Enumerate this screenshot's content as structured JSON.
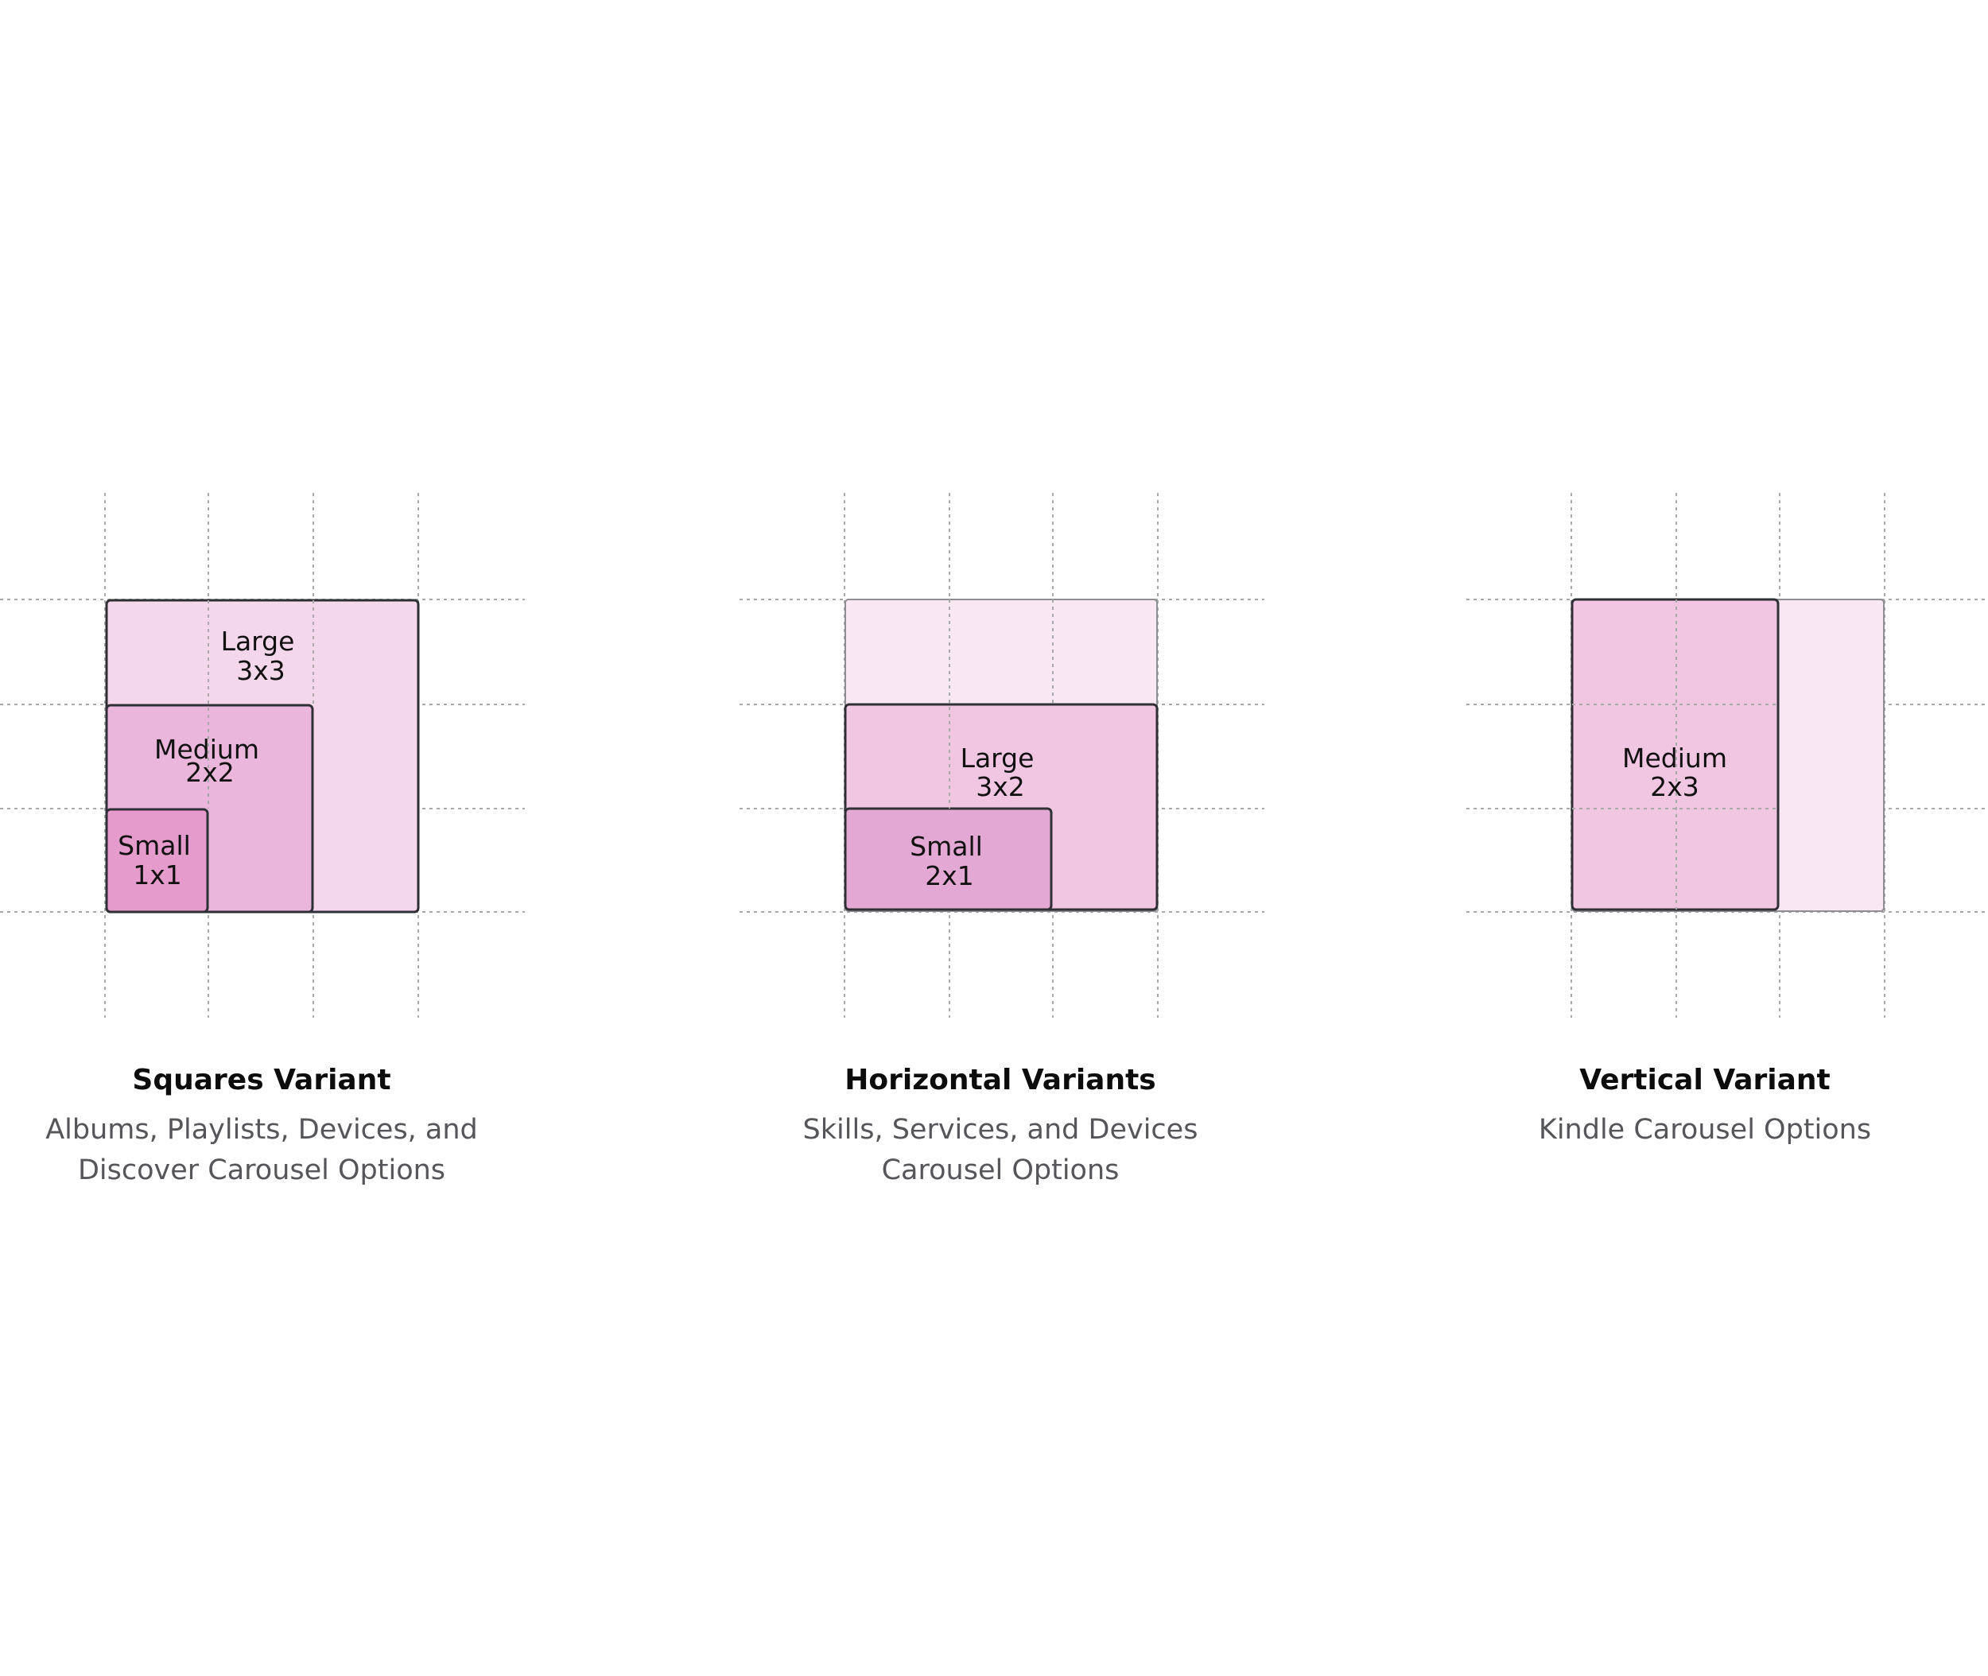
{
  "colors": {
    "grid_line": "#a9a9a9",
    "tile_border": "#2f2f36",
    "ghost_fill": "#f9e8f3",
    "light_fill": "#f5d7ec",
    "medium_fill": "#eab6db",
    "mid_fill": "#f0c6e3",
    "small_fill": "#e59bcc",
    "small_alt_fill": "#e4a8d4"
  },
  "panels": [
    {
      "title": "Squares Variant",
      "description": "Albums, Playlists, Devices, and\nDiscover Carousel Options",
      "tiles": [
        {
          "name": "Large",
          "size": "3x3"
        },
        {
          "name": "Medium",
          "size": "2x2"
        },
        {
          "name": "Small",
          "size": "1x1"
        }
      ]
    },
    {
      "title": "Horizontal Variants",
      "description": "Skills, Services, and Devices\nCarousel Options",
      "tiles": [
        {
          "name": "Large",
          "size": "3x2"
        },
        {
          "name": "Small",
          "size": "2x1"
        }
      ]
    },
    {
      "title": "Vertical Variant",
      "description": "Kindle Carousel Options",
      "tiles": [
        {
          "name": "Medium",
          "size": "2x3"
        }
      ]
    }
  ]
}
